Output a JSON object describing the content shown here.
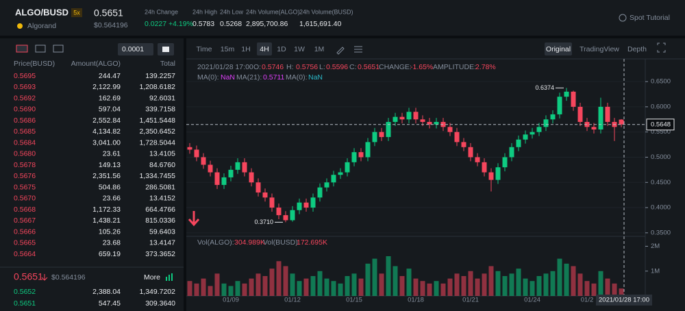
{
  "header": {
    "pair": "ALGO/BUSD",
    "leverage": "5x",
    "name": "Algorand",
    "last_price": "0.5651",
    "last_price_usd": "$0.564196",
    "stats": [
      {
        "label": "24h Change",
        "value": "0.0227 +4.19%"
      },
      {
        "label": "24h High",
        "value": "0.5783"
      },
      {
        "label": "24h Low",
        "value": "0.5268"
      },
      {
        "label": "24h Volume(ALGO)",
        "value": "2,895,700.86"
      },
      {
        "label": "24h Volume(BUSD)",
        "value": "1,615,691.40"
      }
    ],
    "tutorial": "Spot Tutorial"
  },
  "order_book": {
    "step": "0.0001",
    "columns": [
      "Price(BUSD)",
      "Amount(ALGO)",
      "Total"
    ],
    "asks": [
      [
        "0.5695",
        "244.47",
        "139.2257"
      ],
      [
        "0.5693",
        "2,122.99",
        "1,208.6182"
      ],
      [
        "0.5692",
        "162.69",
        "92.6031"
      ],
      [
        "0.5690",
        "597.04",
        "339.7158"
      ],
      [
        "0.5686",
        "2,552.84",
        "1,451.5448"
      ],
      [
        "0.5685",
        "4,134.82",
        "2,350.6452"
      ],
      [
        "0.5684",
        "3,041.00",
        "1,728.5044"
      ],
      [
        "0.5680",
        "23.61",
        "13.4105"
      ],
      [
        "0.5678",
        "149.13",
        "84.6760"
      ],
      [
        "0.5676",
        "2,351.56",
        "1,334.7455"
      ],
      [
        "0.5675",
        "504.86",
        "286.5081"
      ],
      [
        "0.5670",
        "23.66",
        "13.4152"
      ],
      [
        "0.5668",
        "1,172.33",
        "664.4766"
      ],
      [
        "0.5667",
        "1,438.21",
        "815.0336"
      ],
      [
        "0.5666",
        "105.26",
        "59.6403"
      ],
      [
        "0.5665",
        "23.68",
        "13.4147"
      ],
      [
        "0.5664",
        "659.19",
        "373.3652"
      ]
    ],
    "last_price": "0.5651",
    "last_price_usd": "$0.564196",
    "more": "More",
    "bids": [
      [
        "0.5652",
        "2,388.04",
        "1,349.7202"
      ],
      [
        "0.5651",
        "547.45",
        "309.3640"
      ]
    ]
  },
  "toolbar": {
    "intervals": [
      "Time",
      "15m",
      "1H",
      "4H",
      "1D",
      "1W",
      "1M"
    ],
    "active_interval": "4H",
    "views": [
      "Original",
      "TradingView",
      "Depth"
    ],
    "active_view": "Original"
  },
  "info": {
    "datetime": "2021/01/28 17:00",
    "ohlc": [
      {
        "label": "O:",
        "value": "0.5746"
      },
      {
        "label": "H:",
        "value": "0.5756"
      },
      {
        "label": "L:",
        "value": "0.5596"
      },
      {
        "label": "C:",
        "value": "0.5651"
      },
      {
        "label": "CHANGE:",
        "value": "-1.65%"
      },
      {
        "label": "AMPLITUDE:",
        "value": "2.78%"
      }
    ],
    "ma": [
      {
        "label": "MA(0):",
        "value": "NaN"
      },
      {
        "label": "MA(21):",
        "value": "0.5711"
      },
      {
        "label": "MA(0):",
        "value": "NaN"
      }
    ],
    "volume": [
      {
        "label": "Vol(ALGO):",
        "value": "304.989K"
      },
      {
        "label": "Vol(BUSD):",
        "value": "172.695K"
      }
    ],
    "crosshair_time": "2021/01/28 17:00"
  },
  "chart_data": {
    "type": "candlestick",
    "up_color": "#0ecb81",
    "down_color": "#f6465d",
    "categories": [
      null,
      null,
      null,
      null,
      null,
      null,
      "01/09",
      null,
      null,
      null,
      null,
      null,
      null,
      null,
      null,
      "01/12",
      null,
      null,
      null,
      null,
      null,
      null,
      null,
      null,
      "01/15",
      null,
      null,
      null,
      null,
      null,
      null,
      null,
      null,
      "01/18",
      null,
      null,
      null,
      null,
      null,
      null,
      null,
      "01/21",
      null,
      null,
      null,
      null,
      null,
      null,
      null,
      null,
      "01/24",
      null,
      null,
      null,
      null,
      null,
      null,
      null,
      "01/2",
      null,
      null,
      null,
      null,
      null
    ],
    "open": [
      0.52,
      0.515,
      0.5,
      0.485,
      0.47,
      0.445,
      0.46,
      0.475,
      0.49,
      0.47,
      0.45,
      0.43,
      0.42,
      0.4,
      0.385,
      0.375,
      0.395,
      0.41,
      0.4,
      0.42,
      0.44,
      0.45,
      0.465,
      0.47,
      0.49,
      0.51,
      0.5,
      0.53,
      0.55,
      0.54,
      0.57,
      0.58,
      0.575,
      0.59,
      0.575,
      0.57,
      0.565,
      0.57,
      0.56,
      0.55,
      0.53,
      0.52,
      0.5,
      0.49,
      0.47,
      0.455,
      0.48,
      0.5,
      0.52,
      0.535,
      0.545,
      0.55,
      0.56,
      0.575,
      0.585,
      0.62,
      0.63,
      0.6,
      0.57,
      0.56,
      0.555,
      0.6,
      0.57,
      0.5746
    ],
    "high": [
      0.528,
      0.523,
      0.508,
      0.493,
      0.478,
      0.468,
      0.483,
      0.498,
      0.498,
      0.478,
      0.458,
      0.438,
      0.428,
      0.408,
      0.393,
      0.403,
      0.418,
      0.418,
      0.428,
      0.448,
      0.458,
      0.473,
      0.478,
      0.498,
      0.518,
      0.518,
      0.538,
      0.558,
      0.558,
      0.578,
      0.588,
      0.588,
      0.598,
      0.598,
      0.583,
      0.578,
      0.578,
      0.578,
      0.568,
      0.558,
      0.538,
      0.528,
      0.508,
      0.498,
      0.478,
      0.488,
      0.508,
      0.528,
      0.543,
      0.553,
      0.558,
      0.568,
      0.583,
      0.593,
      0.628,
      0.6374,
      0.632,
      0.608,
      0.578,
      0.568,
      0.618,
      0.608,
      0.578,
      0.5756
    ],
    "low": [
      0.507,
      0.492,
      0.477,
      0.462,
      0.437,
      0.437,
      0.452,
      0.467,
      0.462,
      0.442,
      0.422,
      0.412,
      0.392,
      0.377,
      0.371,
      0.372,
      0.387,
      0.392,
      0.392,
      0.412,
      0.432,
      0.442,
      0.457,
      0.462,
      0.482,
      0.492,
      0.492,
      0.522,
      0.532,
      0.532,
      0.562,
      0.567,
      0.567,
      0.567,
      0.562,
      0.557,
      0.557,
      0.552,
      0.542,
      0.522,
      0.512,
      0.492,
      0.482,
      0.462,
      0.432,
      0.447,
      0.472,
      0.492,
      0.512,
      0.527,
      0.537,
      0.542,
      0.552,
      0.567,
      0.577,
      0.612,
      0.592,
      0.562,
      0.552,
      0.547,
      0.547,
      0.562,
      0.532,
      0.5596
    ],
    "close": [
      0.515,
      0.5,
      0.485,
      0.47,
      0.445,
      0.46,
      0.475,
      0.49,
      0.47,
      0.45,
      0.43,
      0.42,
      0.4,
      0.385,
      0.375,
      0.395,
      0.41,
      0.4,
      0.42,
      0.44,
      0.45,
      0.465,
      0.47,
      0.49,
      0.51,
      0.5,
      0.53,
      0.55,
      0.54,
      0.57,
      0.58,
      0.575,
      0.59,
      0.575,
      0.57,
      0.565,
      0.57,
      0.56,
      0.55,
      0.53,
      0.52,
      0.5,
      0.49,
      0.47,
      0.455,
      0.48,
      0.5,
      0.52,
      0.535,
      0.545,
      0.55,
      0.56,
      0.575,
      0.585,
      0.62,
      0.63,
      0.6,
      0.57,
      0.56,
      0.555,
      0.6,
      0.57,
      0.56,
      0.5651
    ],
    "ylim": [
      0.343,
      0.695
    ],
    "yticks": [
      {
        "value": 0.35,
        "label": "0.3500"
      },
      {
        "value": 0.4,
        "label": "0.4000"
      },
      {
        "value": 0.45,
        "label": "0.4500"
      },
      {
        "value": 0.5,
        "label": "0.5000"
      },
      {
        "value": 0.55,
        "label": "0.5500"
      },
      {
        "value": 0.6,
        "label": "0.6000"
      },
      {
        "value": 0.65,
        "label": "0.6500"
      }
    ],
    "last_price": {
      "value": 0.5648,
      "label": "0.5648"
    },
    "annotations": {
      "high": "0.6374",
      "low": "0.3710"
    },
    "volume": [
      600000,
      500000,
      700000,
      400000,
      900000,
      500000,
      400000,
      600000,
      500000,
      700000,
      900000,
      800000,
      1100000,
      1400000,
      1200000,
      900000,
      600000,
      700000,
      800000,
      1000000,
      700000,
      600000,
      500000,
      800000,
      900000,
      700000,
      1300000,
      1500000,
      900000,
      1600000,
      1200000,
      800000,
      1100000,
      700000,
      600000,
      500000,
      600000,
      500000,
      700000,
      900000,
      800000,
      1000000,
      700000,
      900000,
      1200000,
      1000000,
      800000,
      900000,
      1100000,
      700000,
      600000,
      800000,
      900000,
      1000000,
      1500000,
      1300000,
      1200000,
      900000,
      600000,
      500000,
      1000000,
      700000,
      500000,
      300000
    ],
    "volume_ylim": [
      0,
      2400000
    ],
    "volume_yticks": [
      {
        "value": 1000000,
        "label": "1M"
      },
      {
        "value": 2000000,
        "label": "2M"
      }
    ]
  }
}
